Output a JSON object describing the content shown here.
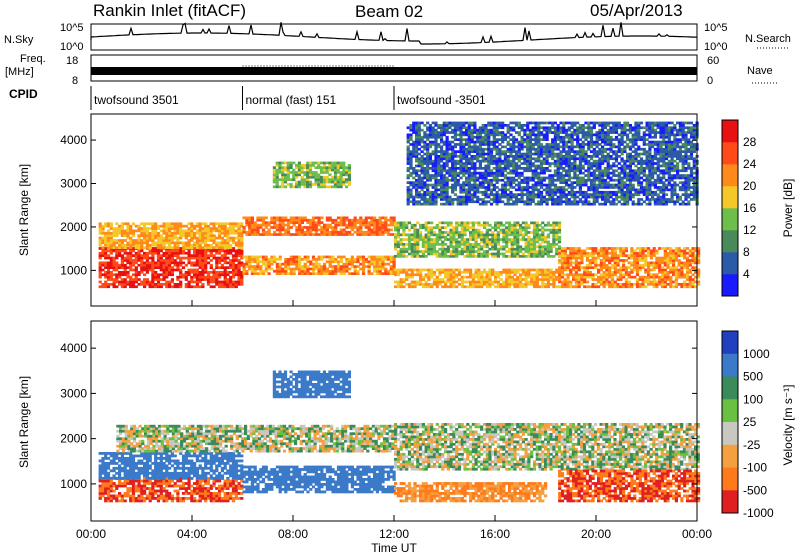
{
  "header": {
    "station": "Rankin Inlet (fitACF)",
    "beam": "Beam 02",
    "date": "05/Apr/2013"
  },
  "top_panels": {
    "nsky_label": "N.Sky",
    "nsearch_label": "N.Search",
    "noise_ticks_left": [
      "10^5",
      "10^0"
    ],
    "noise_ticks_right": [
      "10^5",
      "10^0"
    ],
    "freq_label": "Freq.",
    "freq_unit": "[MHz]",
    "freq_ticks": [
      "8",
      "18"
    ],
    "nave_label": "Nave",
    "nave_ticks": [
      "60",
      "0"
    ],
    "cpid_label": "CPID",
    "cpid_segments": [
      {
        "label": "twofsound 3501",
        "start_hour": 0,
        "end_hour": 6
      },
      {
        "label": "normal (fast) 151",
        "start_hour": 6,
        "end_hour": 12
      },
      {
        "label": "twofsound -3501",
        "start_hour": 12,
        "end_hour": 24
      }
    ]
  },
  "time_axis": {
    "title": "Time UT",
    "tick_labels": [
      "00:00",
      "04:00",
      "08:00",
      "12:00",
      "16:00",
      "20:00",
      "00:00"
    ]
  },
  "chart_data": [
    {
      "type": "heatmap",
      "name": "power",
      "ylabel": "Slant Range [km]",
      "ylim": [
        180,
        4600
      ],
      "y_ticks": [
        "1000",
        "2000",
        "3000",
        "4000"
      ],
      "xlim_hours": [
        0,
        24
      ],
      "colorbar_label": "Power [dB]",
      "colorbar_ticks": [
        "4",
        "8",
        "12",
        "16",
        "20",
        "24",
        "28"
      ],
      "colorbar_range": [
        0,
        32
      ],
      "colors": [
        "#1a1aff",
        "#2a5aa8",
        "#4a8a5a",
        "#6bbf4a",
        "#f5c82a",
        "#ff8a1a",
        "#ff4a1a",
        "#e81010"
      ],
      "bands": [
        {
          "t0": 0.3,
          "t1": 6.0,
          "r0": 600,
          "r1": 1500,
          "level": 28
        },
        {
          "t0": 0.3,
          "t1": 6.0,
          "r0": 1500,
          "r1": 2100,
          "level": 20
        },
        {
          "t0": 6.0,
          "t1": 12.0,
          "r0": 1800,
          "r1": 2200,
          "level": 24
        },
        {
          "t0": 6.0,
          "t1": 12.0,
          "r0": 900,
          "r1": 1300,
          "level": 22
        },
        {
          "t0": 7.2,
          "t1": 10.2,
          "r0": 2900,
          "r1": 3500,
          "level": 14
        },
        {
          "t0": 12.0,
          "t1": 18.5,
          "r0": 1300,
          "r1": 2100,
          "level": 14
        },
        {
          "t0": 12.0,
          "t1": 18.5,
          "r0": 600,
          "r1": 1000,
          "level": 20
        },
        {
          "t0": 18.5,
          "t1": 24.0,
          "r0": 600,
          "r1": 1500,
          "level": 22
        },
        {
          "t0": 12.5,
          "t1": 24.0,
          "r0": 2500,
          "r1": 4400,
          "level": 6
        }
      ]
    },
    {
      "type": "heatmap",
      "name": "velocity",
      "ylabel": "Slant Range [km]",
      "ylim": [
        180,
        4600
      ],
      "y_ticks": [
        "1000",
        "2000",
        "3000",
        "4000"
      ],
      "xlim_hours": [
        0,
        24
      ],
      "colorbar_label": "Velocity [m s⁻¹]",
      "colorbar_ticks": [
        "1000",
        "500",
        "100",
        "25",
        "-25",
        "-100",
        "-500",
        "-1000"
      ],
      "colors": [
        "#2040c0",
        "#3a7ac8",
        "#3a8a5a",
        "#6ac040",
        "#c8c8c0",
        "#f5a040",
        "#ff7a1a",
        "#e02020"
      ],
      "bands": [
        {
          "t0": 0.3,
          "t1": 6.0,
          "r0": 600,
          "r1": 1100,
          "level": -500
        },
        {
          "t0": 0.3,
          "t1": 6.0,
          "r0": 1100,
          "r1": 1700,
          "level": 300
        },
        {
          "t0": 1.0,
          "t1": 12.0,
          "r0": 1700,
          "r1": 2300,
          "level": 0
        },
        {
          "t0": 6.0,
          "t1": 12.0,
          "r0": 800,
          "r1": 1400,
          "level": 200
        },
        {
          "t0": 7.2,
          "t1": 10.2,
          "r0": 2900,
          "r1": 3500,
          "level": 300
        },
        {
          "t0": 12.0,
          "t1": 24.0,
          "r0": 1300,
          "r1": 2300,
          "level": 0
        },
        {
          "t0": 12.0,
          "t1": 18.0,
          "r0": 600,
          "r1": 1000,
          "level": -100
        },
        {
          "t0": 18.5,
          "t1": 24.0,
          "r0": 600,
          "r1": 1300,
          "level": -500
        }
      ]
    }
  ]
}
